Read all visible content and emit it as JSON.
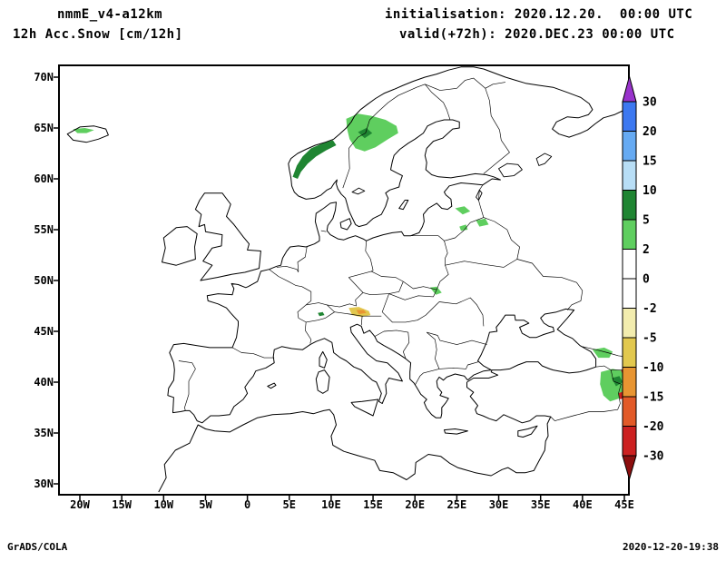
{
  "header": {
    "model": "nmmE_v4-a12km",
    "field": "12h Acc.Snow [cm/12h]",
    "init": "initialisation: 2020.12.20.  00:00 UTC",
    "valid": "valid(+72h): 2020.DEC.23 00:00 UTC"
  },
  "footer": {
    "left": "GrADS/COLA",
    "right": "2020-12-20-19:38"
  },
  "axes": {
    "lat_ticks": [
      {
        "label": "70N",
        "value": 70
      },
      {
        "label": "65N",
        "value": 65
      },
      {
        "label": "60N",
        "value": 60
      },
      {
        "label": "55N",
        "value": 55
      },
      {
        "label": "50N",
        "value": 50
      },
      {
        "label": "45N",
        "value": 45
      },
      {
        "label": "40N",
        "value": 40
      },
      {
        "label": "35N",
        "value": 35
      },
      {
        "label": "30N",
        "value": 30
      }
    ],
    "lon_ticks": [
      {
        "label": "20W",
        "value": -20
      },
      {
        "label": "15W",
        "value": -15
      },
      {
        "label": "10W",
        "value": -10
      },
      {
        "label": "5W",
        "value": -5
      },
      {
        "label": "0",
        "value": 0
      },
      {
        "label": "5E",
        "value": 5
      },
      {
        "label": "10E",
        "value": 10
      },
      {
        "label": "15E",
        "value": 15
      },
      {
        "label": "20E",
        "value": 20
      },
      {
        "label": "25E",
        "value": 25
      },
      {
        "label": "30E",
        "value": 30
      },
      {
        "label": "35E",
        "value": 35
      },
      {
        "label": "40E",
        "value": 40
      },
      {
        "label": "45E",
        "value": 45
      }
    ]
  },
  "colorbar": {
    "labels": [
      "30",
      "20",
      "15",
      "10",
      "5",
      "2",
      "0",
      "-2",
      "-5",
      "-10",
      "-15",
      "-20",
      "-30"
    ],
    "colors": [
      "#9933cc",
      "#3c78f0",
      "#66aaf2",
      "#b8def6",
      "#1f8532",
      "#5fce5f",
      "#ffffff",
      "#ffffff",
      "#f2ecae",
      "#e2c84e",
      "#e89532",
      "#e25a28",
      "#cc2020",
      "#8c0e0e"
    ]
  },
  "chart_data": {
    "type": "heatmap",
    "title": "12h Acc.Snow [cm/12h]",
    "model": "nmmE_v4-a12km",
    "units": "cm/12h",
    "projection": "latlon",
    "lon_range": [
      -20,
      45
    ],
    "lat_range": [
      30,
      70
    ],
    "levels": [
      30,
      20,
      15,
      10,
      5,
      2,
      0,
      -2,
      -5,
      -10,
      -15,
      -20,
      -30
    ],
    "legend_position": "right",
    "grid": false,
    "snow_patches": [
      {
        "name": "iceland-coast",
        "level_cm": "2-5",
        "color": "#5fce5f",
        "polygon": [
          [
            -20.8,
            64.9
          ],
          [
            -19.4,
            65.0
          ],
          [
            -18.3,
            64.8
          ],
          [
            -19.2,
            64.5
          ],
          [
            -20.3,
            64.5
          ]
        ]
      },
      {
        "name": "norway-west-coast",
        "level_cm": "5-10",
        "color": "#1f8532",
        "polygon": [
          [
            5.4,
            60.2
          ],
          [
            5.9,
            61.3
          ],
          [
            6.6,
            62.2
          ],
          [
            7.6,
            63.0
          ],
          [
            9.0,
            63.5
          ],
          [
            10.2,
            63.8
          ],
          [
            10.6,
            63.3
          ],
          [
            9.4,
            62.8
          ],
          [
            8.2,
            62.2
          ],
          [
            7.2,
            61.5
          ],
          [
            6.4,
            60.7
          ],
          [
            6.0,
            60.0
          ]
        ]
      },
      {
        "name": "central-scandinavia",
        "level_cm": "2-5",
        "color": "#5fce5f",
        "polygon": [
          [
            11.8,
            65.9
          ],
          [
            13.2,
            66.4
          ],
          [
            14.8,
            66.2
          ],
          [
            16.5,
            65.8
          ],
          [
            17.8,
            65.2
          ],
          [
            18.0,
            64.5
          ],
          [
            16.8,
            63.9
          ],
          [
            15.3,
            63.1
          ],
          [
            14.0,
            62.7
          ],
          [
            12.9,
            63.0
          ],
          [
            12.2,
            63.9
          ],
          [
            11.9,
            64.9
          ]
        ]
      },
      {
        "name": "central-scandinavia-core",
        "level_cm": "5-10",
        "color": "#1f8532",
        "polygon": [
          [
            13.2,
            64.6
          ],
          [
            14.2,
            65.0
          ],
          [
            14.9,
            64.5
          ],
          [
            14.0,
            64.0
          ]
        ]
      },
      {
        "name": "baltic-patch-1",
        "level_cm": "2-5",
        "color": "#5fce5f",
        "polygon": [
          [
            24.8,
            57.1
          ],
          [
            25.9,
            57.3
          ],
          [
            26.6,
            56.8
          ],
          [
            25.7,
            56.5
          ]
        ]
      },
      {
        "name": "baltic-patch-2",
        "level_cm": "2-5",
        "color": "#5fce5f",
        "polygon": [
          [
            27.3,
            55.9
          ],
          [
            28.4,
            56.1
          ],
          [
            28.8,
            55.5
          ],
          [
            27.7,
            55.3
          ]
        ]
      },
      {
        "name": "baltic-patch-3",
        "level_cm": "2-5",
        "color": "#5fce5f",
        "polygon": [
          [
            25.3,
            55.3
          ],
          [
            26.1,
            55.5
          ],
          [
            26.3,
            55.0
          ],
          [
            25.5,
            54.9
          ]
        ]
      },
      {
        "name": "carpathians",
        "level_cm": "2-5",
        "color": "#5fce5f",
        "polygon": [
          [
            21.8,
            49.3
          ],
          [
            22.6,
            49.4
          ],
          [
            23.2,
            48.8
          ],
          [
            22.5,
            48.6
          ]
        ]
      },
      {
        "name": "swiss-alps-spot",
        "level_cm": "5-10",
        "color": "#1f8532",
        "polygon": [
          [
            8.4,
            46.8
          ],
          [
            9.0,
            46.9
          ],
          [
            9.2,
            46.6
          ],
          [
            8.6,
            46.5
          ]
        ]
      },
      {
        "name": "austrian-alps",
        "level_cm": "-10 to -5",
        "color": "#e2c84e",
        "polygon": [
          [
            12.1,
            47.3
          ],
          [
            13.3,
            47.4
          ],
          [
            14.5,
            47.0
          ],
          [
            14.7,
            46.6
          ],
          [
            13.6,
            46.4
          ],
          [
            12.5,
            46.6
          ]
        ]
      },
      {
        "name": "austrian-alps-core",
        "level_cm": "-15 to -10",
        "color": "#e89532",
        "polygon": [
          [
            13.0,
            47.1
          ],
          [
            13.9,
            47.1
          ],
          [
            14.2,
            46.8
          ],
          [
            13.3,
            46.7
          ]
        ]
      },
      {
        "name": "georgia-caucasus",
        "level_cm": "2-5",
        "color": "#5fce5f",
        "polygon": [
          [
            41.2,
            43.2
          ],
          [
            42.6,
            43.4
          ],
          [
            43.6,
            43.0
          ],
          [
            43.2,
            42.4
          ],
          [
            41.9,
            42.4
          ]
        ]
      },
      {
        "name": "east-turkey-armenia",
        "level_cm": "2-5",
        "color": "#5fce5f",
        "polygon": [
          [
            42.2,
            41.0
          ],
          [
            43.6,
            41.3
          ],
          [
            44.9,
            41.1
          ],
          [
            45.3,
            40.4
          ],
          [
            45.2,
            39.4
          ],
          [
            44.4,
            38.4
          ],
          [
            43.3,
            38.1
          ],
          [
            42.5,
            38.7
          ],
          [
            42.1,
            39.8
          ]
        ]
      },
      {
        "name": "east-turkey-armenia-core",
        "level_cm": "5-10",
        "color": "#1f8532",
        "polygon": [
          [
            43.5,
            40.4
          ],
          [
            44.4,
            40.6
          ],
          [
            44.8,
            40.0
          ],
          [
            44.0,
            39.6
          ]
        ]
      },
      {
        "name": "armenia-orange-spot",
        "level_cm": "-15 to -10",
        "color": "#e89532",
        "polygon": [
          [
            44.9,
            40.4
          ],
          [
            45.3,
            40.5
          ],
          [
            45.3,
            40.0
          ],
          [
            45.0,
            40.0
          ]
        ]
      },
      {
        "name": "armenia-red-spot-1",
        "level_cm": "-30 to -20",
        "color": "#cc2020",
        "polygon": [
          [
            44.6,
            41.2
          ],
          [
            45.2,
            41.3
          ],
          [
            45.3,
            40.8
          ],
          [
            44.8,
            40.7
          ]
        ]
      },
      {
        "name": "armenia-red-spot-2",
        "level_cm": "-30 to -20",
        "color": "#cc2020",
        "polygon": [
          [
            44.3,
            38.9
          ],
          [
            44.9,
            39.1
          ],
          [
            45.1,
            38.5
          ],
          [
            44.5,
            38.3
          ]
        ]
      }
    ]
  }
}
